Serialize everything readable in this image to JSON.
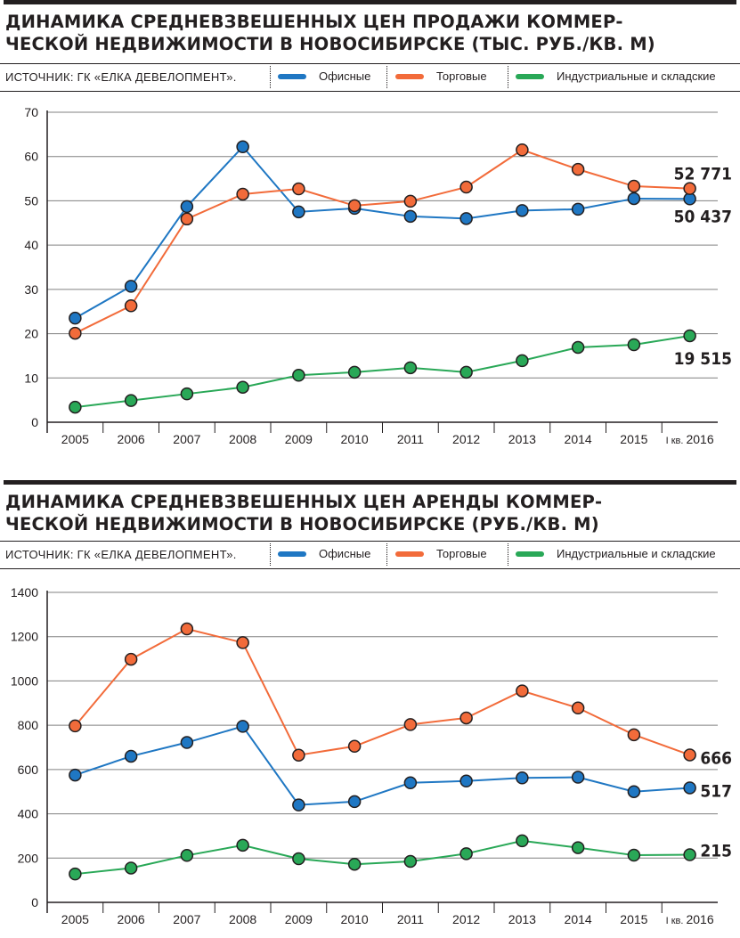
{
  "colors": {
    "office": "#1f77c3",
    "retail": "#f26b3a",
    "industrial": "#29a857",
    "text": "#231f20",
    "grid": "#808080"
  },
  "legend": {
    "source": "ИСТОЧНИК: ГК «ЕЛКА ДЕВЕЛОПМЕНТ».",
    "office": "Офисные",
    "retail": "Торговые",
    "industrial": "Индустриальные и складские"
  },
  "chart_data": [
    {
      "type": "line",
      "title": "ДИНАМИКА СРЕДНЕВЗВЕШЕННЫХ ЦЕН ПРОДАЖИ КОММЕР-ЧЕСКОЙ НЕДВИЖИМОСТИ В НОВОСИБИРСКЕ (ТЫС. РУБ./КВ. М)",
      "title_line1": "ДИНАМИКА СРЕДНЕВЗВЕШЕННЫХ ЦЕН ПРОДАЖИ КОММЕР-",
      "title_line2": "ЧЕСКОЙ НЕДВИЖИМОСТИ В НОВОСИБИРСКЕ (ТЫС. РУБ./КВ. М)",
      "categories": [
        "2005",
        "2006",
        "2007",
        "2008",
        "2009",
        "2010",
        "2011",
        "2012",
        "2013",
        "2014",
        "2015",
        "I кв. 2016"
      ],
      "ylim": [
        0,
        70
      ],
      "yticks": [
        0,
        10,
        20,
        30,
        40,
        50,
        60,
        70
      ],
      "grid": true,
      "series": [
        {
          "name": "Офисные",
          "key": "office",
          "values": [
            23.5,
            30.7,
            48.7,
            62.2,
            47.5,
            48.3,
            46.5,
            46.0,
            47.8,
            48.1,
            50.5,
            50.437
          ],
          "end_label": "50 437"
        },
        {
          "name": "Торговые",
          "key": "retail",
          "values": [
            20.1,
            26.3,
            45.9,
            51.5,
            52.7,
            48.9,
            49.9,
            53.1,
            61.5,
            57.1,
            53.3,
            52.771
          ],
          "end_label": "52 771"
        },
        {
          "name": "Индустриальные и складские",
          "key": "industrial",
          "values": [
            3.4,
            4.9,
            6.4,
            7.9,
            10.6,
            11.3,
            12.3,
            11.3,
            13.9,
            16.9,
            17.5,
            19.515
          ],
          "end_label": "19 515"
        }
      ]
    },
    {
      "type": "line",
      "title": "ДИНАМИКА СРЕДНЕВЗВЕШЕННЫХ ЦЕН АРЕНДЫ КОММЕР-ЧЕСКОЙ НЕДВИЖИМОСТИ В НОВОСИБИРСКЕ (РУБ./КВ. М)",
      "title_line1": "ДИНАМИКА СРЕДНЕВЗВЕШЕННЫХ ЦЕН АРЕНДЫ КОММЕР-",
      "title_line2": "ЧЕСКОЙ НЕДВИЖИМОСТИ В НОВОСИБИРСКЕ (РУБ./КВ. М)",
      "categories": [
        "2005",
        "2006",
        "2007",
        "2008",
        "2009",
        "2010",
        "2011",
        "2012",
        "2013",
        "2014",
        "2015",
        "I кв. 2016"
      ],
      "ylim": [
        0,
        1400
      ],
      "yticks": [
        0,
        200,
        400,
        600,
        800,
        1000,
        1200,
        1400
      ],
      "grid": true,
      "series": [
        {
          "name": "Офисные",
          "key": "office",
          "values": [
            575,
            660,
            722,
            795,
            440,
            455,
            540,
            548,
            562,
            565,
            500,
            517
          ],
          "end_label": "517"
        },
        {
          "name": "Торговые",
          "key": "retail",
          "values": [
            797,
            1098,
            1235,
            1173,
            665,
            705,
            803,
            833,
            955,
            878,
            757,
            666
          ],
          "end_label": "666"
        },
        {
          "name": "Индустриальные и складские",
          "key": "industrial",
          "values": [
            128,
            155,
            212,
            258,
            197,
            172,
            185,
            220,
            278,
            247,
            213,
            215
          ],
          "end_label": "215"
        }
      ]
    }
  ]
}
